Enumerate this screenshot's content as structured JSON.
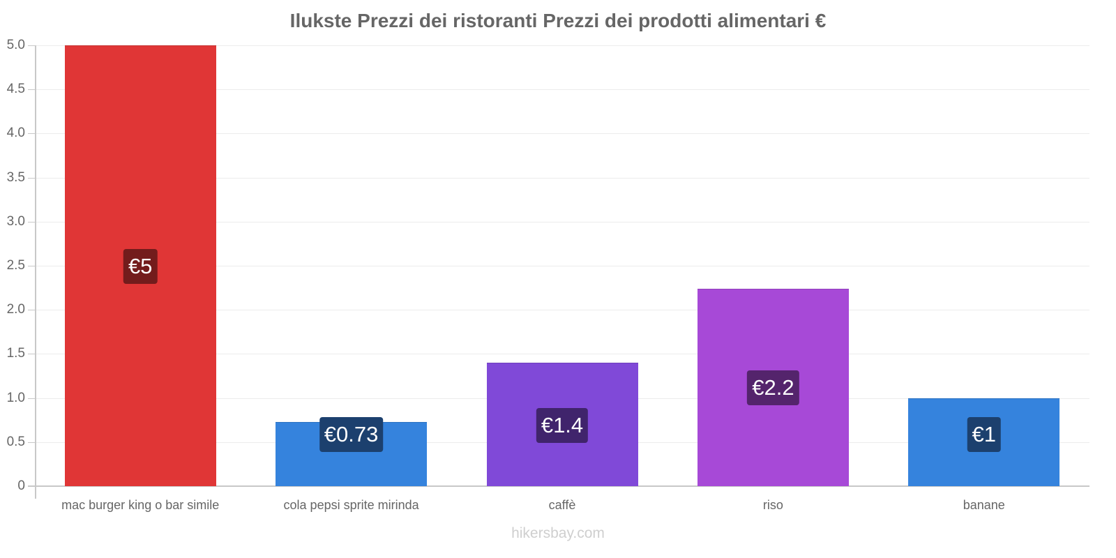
{
  "chart_data": {
    "type": "bar",
    "title": "Ilukste Prezzi dei ristoranti Prezzi dei prodotti alimentari €",
    "xlabel": "",
    "ylabel": "",
    "ylim": [
      0,
      5.0
    ],
    "yticks": [
      "0",
      "0.5",
      "1.0",
      "1.5",
      "2.0",
      "2.5",
      "3.0",
      "3.5",
      "4.0",
      "4.5",
      "5.0"
    ],
    "grid": true,
    "legend": "none",
    "categories": [
      "mac burger king o bar simile",
      "cola pepsi sprite mirinda",
      "caffè",
      "riso",
      "banane"
    ],
    "values": [
      5,
      0.73,
      1.4,
      2.24,
      1.0
    ],
    "data_labels": [
      "€5",
      "€0.73",
      "€1.4",
      "€2.2",
      "€1"
    ],
    "bar_colors": [
      "#e03636",
      "#3583dd",
      "#8049d8",
      "#a749d7",
      "#3583dd"
    ],
    "label_bg_colors": [
      "#731c1c",
      "#1c406e",
      "#40246c",
      "#54246c",
      "#1c406e"
    ]
  },
  "watermark": "hikersbay.com"
}
